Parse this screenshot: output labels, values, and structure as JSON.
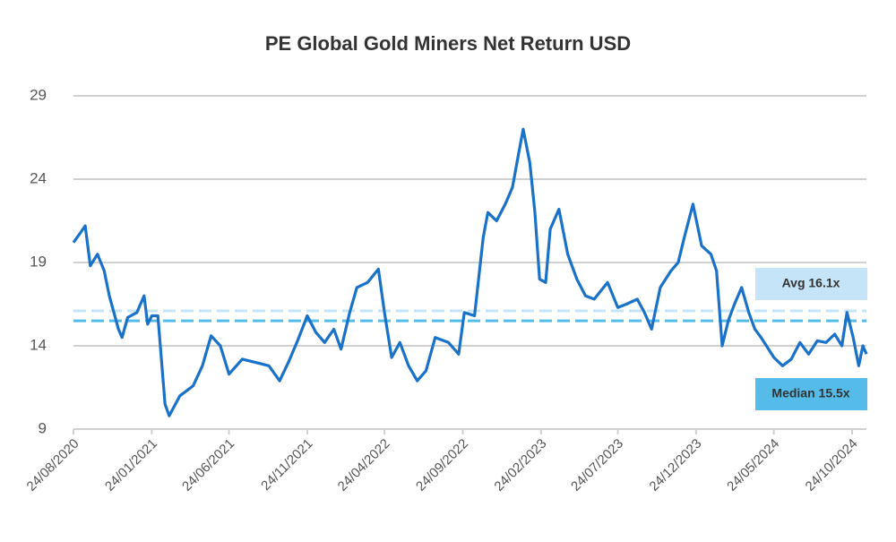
{
  "chart_data": {
    "type": "line",
    "title": "PE Global Gold Miners Net Return USD",
    "color": "#1a72c8",
    "grid": true,
    "ylim": [
      9,
      29
    ],
    "yticks": [
      9,
      14,
      19,
      24,
      29
    ],
    "xlim": [
      "24/08/2020",
      "21/11/2024"
    ],
    "xticks": [
      "24/08/2020",
      "24/01/2021",
      "24/06/2021",
      "24/11/2021",
      "24/04/2022",
      "24/09/2022",
      "24/02/2023",
      "24/07/2023",
      "24/12/2023",
      "24/05/2024",
      "24/10/2024"
    ],
    "reference_lines": [
      {
        "label": "Avg 16.1x",
        "value": 16.1,
        "color": "#c6e4f7"
      },
      {
        "label": "Median 15.5x",
        "value": 15.5,
        "color": "#55bce9"
      }
    ],
    "x": [
      "24/08/2020",
      "07/09/2020",
      "16/09/2020",
      "26/09/2020",
      "10/10/2020",
      "23/10/2020",
      "02/11/2020",
      "20/11/2020",
      "27/11/2020",
      "08/12/2020",
      "26/12/2020",
      "09/01/2021",
      "16/01/2021",
      "24/01/2021",
      "05/02/2021",
      "19/02/2021",
      "27/02/2021",
      "20/03/2021",
      "15/04/2021",
      "03/05/2021",
      "20/05/2021",
      "07/06/2021",
      "24/06/2021",
      "20/07/2021",
      "15/08/2021",
      "10/09/2021",
      "01/10/2021",
      "18/10/2021",
      "05/11/2021",
      "24/11/2021",
      "11/12/2021",
      "28/12/2021",
      "15/01/2022",
      "29/01/2022",
      "15/02/2022",
      "01/03/2022",
      "22/03/2022",
      "12/04/2022",
      "24/04/2022",
      "08/05/2022",
      "24/05/2022",
      "10/06/2022",
      "27/06/2022",
      "14/07/2022",
      "01/08/2022",
      "27/08/2022",
      "16/09/2022",
      "27/09/2022",
      "17/10/2022",
      "03/11/2022",
      "12/11/2022",
      "29/11/2022",
      "16/12/2022",
      "30/12/2022",
      "11/01/2023",
      "20/01/2023",
      "02/02/2023",
      "12/02/2023",
      "21/02/2023",
      "05/03/2023",
      "14/03/2023",
      "31/03/2023",
      "17/04/2023",
      "05/05/2023",
      "22/05/2023",
      "08/06/2023",
      "04/07/2023",
      "24/07/2023",
      "10/08/2023",
      "31/08/2023",
      "14/09/2023",
      "28/09/2023",
      "15/10/2023",
      "05/11/2023",
      "19/11/2023",
      "01/12/2023",
      "18/12/2023",
      "04/01/2024",
      "22/01/2024",
      "02/02/2024",
      "13/02/2024",
      "25/02/2024",
      "08/03/2024",
      "22/03/2024",
      "05/04/2024",
      "17/04/2024",
      "29/04/2024",
      "24/05/2024",
      "10/06/2024",
      "27/06/2024",
      "14/07/2024",
      "31/07/2024",
      "17/08/2024",
      "03/09/2024",
      "20/09/2024",
      "04/10/2024",
      "14/10/2024",
      "26/10/2024",
      "06/11/2024",
      "14/11/2024",
      "21/11/2024"
    ],
    "values": [
      20.2,
      20.8,
      21.2,
      18.8,
      19.5,
      18.5,
      17.0,
      15.0,
      14.5,
      15.7,
      16.0,
      17.0,
      15.3,
      15.8,
      15.8,
      10.5,
      9.8,
      11.0,
      11.6,
      12.8,
      14.6,
      14.0,
      12.3,
      13.2,
      13.0,
      12.8,
      11.9,
      13.0,
      14.3,
      15.8,
      14.8,
      14.2,
      15.0,
      13.8,
      16.0,
      17.5,
      17.8,
      18.6,
      16.0,
      13.3,
      14.2,
      12.8,
      11.9,
      12.5,
      14.5,
      14.2,
      13.5,
      16.0,
      15.8,
      20.5,
      22.0,
      21.5,
      22.5,
      23.5,
      25.5,
      27.0,
      25.0,
      22.0,
      18.0,
      17.8,
      21.0,
      22.2,
      19.5,
      18.0,
      17.0,
      16.8,
      17.8,
      16.3,
      16.5,
      16.8,
      16.0,
      15.0,
      17.5,
      18.5,
      19.0,
      20.5,
      22.5,
      20.0,
      19.5,
      18.5,
      14.0,
      15.5,
      16.5,
      17.5,
      16.0,
      15.0,
      14.5,
      13.3,
      12.8,
      13.2,
      14.2,
      13.5,
      14.3,
      14.2,
      14.7,
      14.0,
      16.0,
      14.5,
      12.8,
      14.0,
      13.5
    ]
  }
}
